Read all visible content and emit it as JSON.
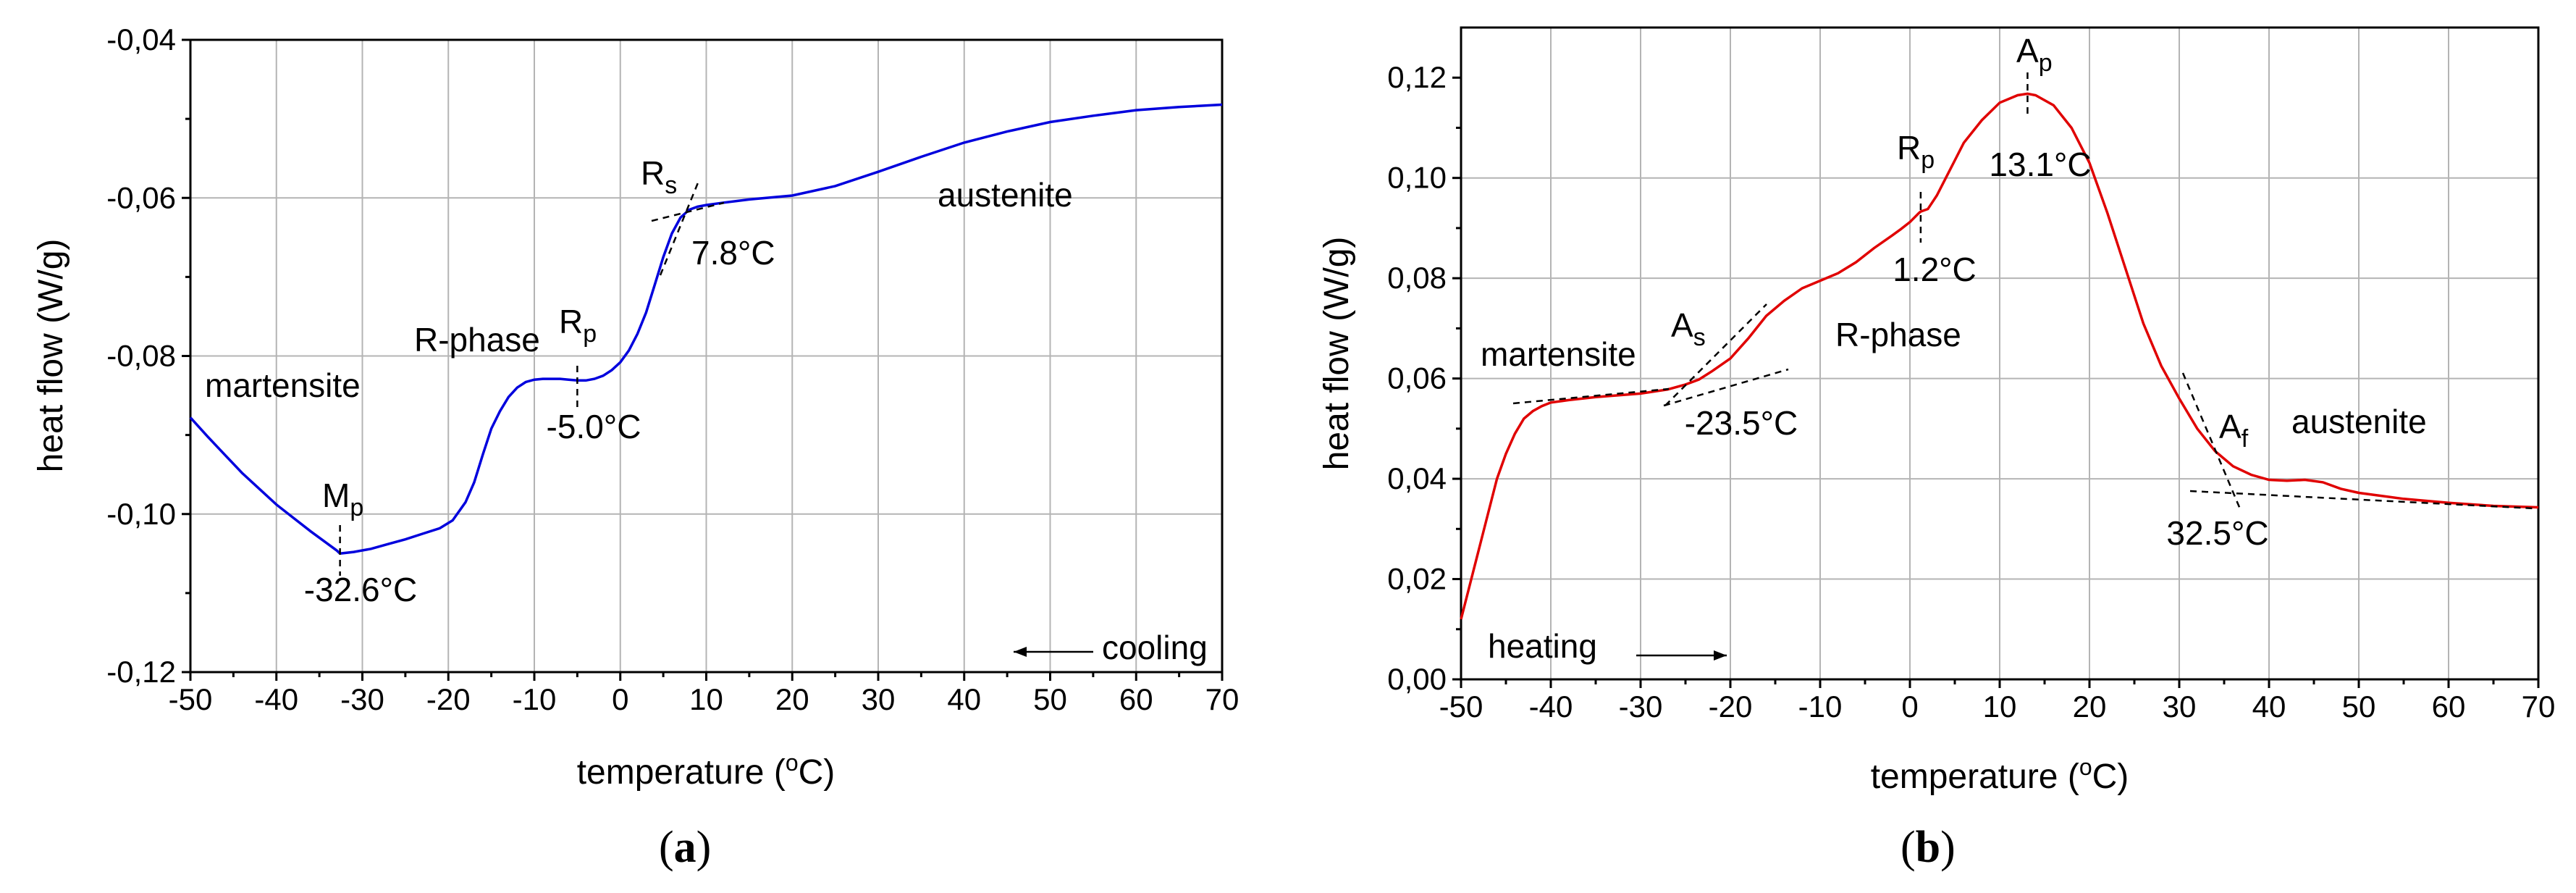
{
  "chart_data": [
    {
      "type": "line",
      "subfigure_label": "(a)",
      "xlabel": "temperature (°C)",
      "ylabel": "heat flow (W/g)",
      "xlim": [
        -50,
        70
      ],
      "ylim": [
        -0.12,
        -0.04
      ],
      "xticks": [
        -50,
        -40,
        -30,
        -20,
        -10,
        0,
        10,
        20,
        30,
        40,
        50,
        60,
        70
      ],
      "yticks": [
        -0.12,
        -0.1,
        -0.08,
        -0.06,
        -0.04
      ],
      "ytick_labels": [
        "-0,12",
        "-0,10",
        "-0,08",
        "-0,06",
        "-0,04"
      ],
      "grid": true,
      "line_color": "#0000dd",
      "series": [
        {
          "x": [
            -50,
            -48,
            -46,
            -44,
            -42,
            -40,
            -38,
            -36,
            -34,
            -33,
            -32.6,
            -31,
            -29,
            -27,
            -25,
            -23,
            -21,
            -19.5,
            -18,
            -17,
            -16,
            -15,
            -14,
            -13,
            -12,
            -11,
            -10,
            -9,
            -8,
            -7,
            -6,
            -5,
            -4,
            -3,
            -2,
            -1,
            0,
            1,
            2,
            3,
            4,
            5,
            6,
            7,
            8,
            9,
            10,
            12,
            15,
            20,
            25,
            30,
            35,
            40,
            45,
            50,
            55,
            60,
            65,
            70
          ],
          "y": [
            -0.0878,
            -0.0902,
            -0.0925,
            -0.0948,
            -0.0968,
            -0.0988,
            -0.1005,
            -0.1022,
            -0.1038,
            -0.1046,
            -0.105,
            -0.1048,
            -0.1044,
            -0.1038,
            -0.1032,
            -0.1025,
            -0.1018,
            -0.1008,
            -0.0985,
            -0.096,
            -0.0925,
            -0.0892,
            -0.087,
            -0.0852,
            -0.084,
            -0.0833,
            -0.083,
            -0.0829,
            -0.0829,
            -0.0829,
            -0.083,
            -0.0831,
            -0.0831,
            -0.0829,
            -0.0825,
            -0.0818,
            -0.0808,
            -0.0793,
            -0.0772,
            -0.0745,
            -0.071,
            -0.0675,
            -0.0645,
            -0.0625,
            -0.0615,
            -0.0611,
            -0.0609,
            -0.0606,
            -0.0602,
            -0.0597,
            -0.0585,
            -0.0567,
            -0.0548,
            -0.053,
            -0.0516,
            -0.0504,
            -0.0496,
            -0.0489,
            -0.0485,
            -0.0482
          ]
        }
      ],
      "annotations": {
        "martensite": "martensite",
        "austenite": "austenite",
        "r_phase": "R-phase",
        "mp_main": "M",
        "mp_sub": "p",
        "mp_value": "-32.6°C",
        "rp_main": "R",
        "rp_sub": "p",
        "rp_value": "-5.0°C",
        "rs_main": "R",
        "rs_sub": "s",
        "rs_value": "7.8°C",
        "cooling": "cooling"
      }
    },
    {
      "type": "line",
      "subfigure_label": "(b)",
      "xlabel": "temperature (°C)",
      "ylabel": "heat flow (W/g)",
      "xlim": [
        -50,
        70
      ],
      "ylim": [
        0,
        0.13
      ],
      "xticks": [
        -50,
        -40,
        -30,
        -20,
        -10,
        0,
        10,
        20,
        30,
        40,
        50,
        60,
        70
      ],
      "yticks": [
        0,
        0.02,
        0.04,
        0.06,
        0.08,
        0.1,
        0.12
      ],
      "ytick_labels": [
        "0,00",
        "0,02",
        "0,04",
        "0,06",
        "0,08",
        "0,10",
        "0,12"
      ],
      "grid": true,
      "line_color": "#e00000",
      "series": [
        {
          "x": [
            -50,
            -49,
            -48,
            -47,
            -46,
            -45,
            -44,
            -43,
            -42,
            -41,
            -40,
            -38,
            -35,
            -30,
            -27,
            -25,
            -23.5,
            -22,
            -20,
            -18,
            -16,
            -14,
            -12,
            -10,
            -8,
            -6,
            -4,
            -2,
            -1,
            0,
            1,
            1.2,
            2,
            3,
            4,
            5,
            6,
            8,
            10,
            12,
            13.1,
            14,
            16,
            18,
            20,
            22,
            24,
            26,
            28,
            30,
            32,
            34,
            36,
            38,
            40,
            42,
            44,
            46,
            48,
            50,
            55,
            60,
            65,
            70
          ],
          "y": [
            0.012,
            0.019,
            0.026,
            0.033,
            0.04,
            0.045,
            0.049,
            0.052,
            0.0535,
            0.0545,
            0.0552,
            0.0557,
            0.0563,
            0.057,
            0.0578,
            0.0588,
            0.0598,
            0.0615,
            0.064,
            0.068,
            0.0725,
            0.0755,
            0.078,
            0.0795,
            0.081,
            0.0832,
            0.086,
            0.0885,
            0.0898,
            0.0912,
            0.093,
            0.0933,
            0.0938,
            0.0965,
            0.1,
            0.1035,
            0.107,
            0.1115,
            0.115,
            0.1165,
            0.1168,
            0.1165,
            0.1145,
            0.11,
            0.103,
            0.093,
            0.082,
            0.071,
            0.0625,
            0.056,
            0.05,
            0.0455,
            0.0425,
            0.0408,
            0.0398,
            0.0396,
            0.0398,
            0.0393,
            0.038,
            0.0372,
            0.036,
            0.0352,
            0.0346,
            0.0343
          ]
        }
      ],
      "annotations": {
        "martensite": "martensite",
        "r_phase": "R-phase",
        "austenite": "austenite",
        "as_main": "A",
        "as_sub": "s",
        "as_value": "-23.5°C",
        "rp_main": "R",
        "rp_sub": "p",
        "rp_value": "1.2°C",
        "ap_main": "A",
        "ap_sub": "p",
        "ap_value": "13.1°C",
        "af_main": "A",
        "af_sub": "f",
        "af_value": "32.5°C",
        "heating": "heating"
      }
    }
  ]
}
